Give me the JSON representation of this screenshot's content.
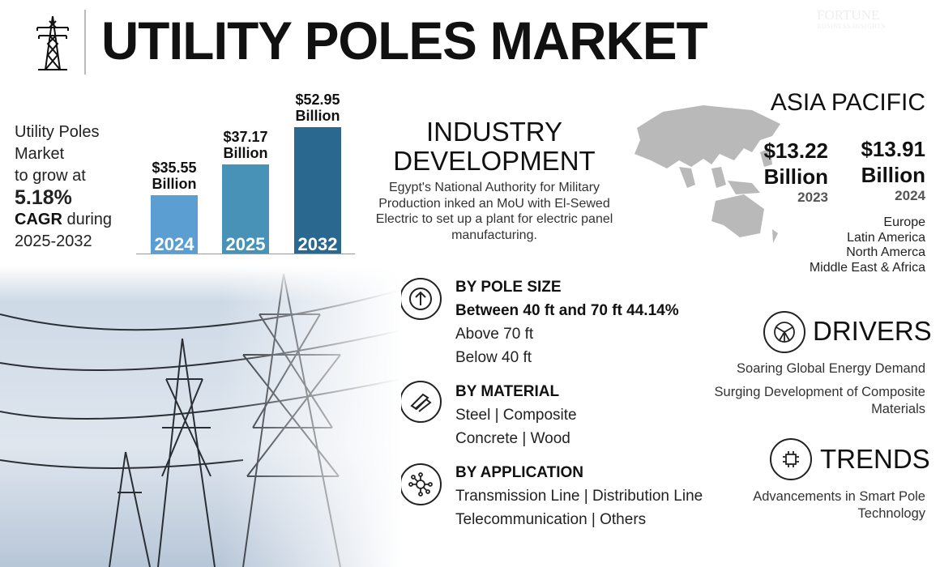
{
  "header": {
    "title": "UTILITY POLES MARKET",
    "watermark_top": "FORTUNE",
    "watermark_bottom": "BUSINESS INSIGHTS",
    "icon": "transmission-tower-icon"
  },
  "summary": {
    "line1": "Utility Poles",
    "line2": "Market",
    "line3": "to grow at",
    "cagr": "5.18%",
    "cagr_label": "CAGR",
    "during": " during",
    "period": "2025-2032"
  },
  "chart_data": {
    "type": "bar",
    "categories": [
      "2024",
      "2025",
      "2032"
    ],
    "values": [
      35.55,
      37.17,
      52.95
    ],
    "unit": "USD Billion",
    "labels": [
      "$35.55",
      "$37.17",
      "$52.95"
    ],
    "label_unit": "Billion",
    "colors": [
      "#5b9fd2",
      "#4792b6",
      "#2b6890"
    ]
  },
  "industry": {
    "title_line1": "INDUSTRY",
    "title_line2": "DEVELOPMENT",
    "text": "Egypt's National Authority for Military Production inked an MoU with El-Sewed Electric to set up a plant for electric panel manufacturing."
  },
  "region": {
    "title": "ASIA PACIFIC",
    "values": [
      {
        "amount": "$13.22",
        "unit": "Billion",
        "year": "2023"
      },
      {
        "amount": "$13.91",
        "unit": "Billion",
        "year": "2024"
      }
    ],
    "others": [
      "Europe",
      "Latin America",
      "North Amerca",
      "Middle East & Africa"
    ]
  },
  "segments": [
    {
      "title": "BY POLE SIZE",
      "icon": "arrow-up-circle-icon",
      "highlight": "Between 40 ft and 70 ft 44.14%",
      "items": [
        "Above 70 ft",
        "Below 40 ft"
      ]
    },
    {
      "title": "BY MATERIAL",
      "icon": "steel-beams-icon",
      "items": [
        "Steel  |  Composite",
        "Concrete |  Wood"
      ]
    },
    {
      "title": "BY APPLICATION",
      "icon": "network-hub-icon",
      "items": [
        "Transmission Line  |  Distribution Line",
        "Telecommunication  |  Others"
      ]
    }
  ],
  "drivers": {
    "title": "DRIVERS",
    "icon": "globe-network-icon",
    "items": [
      "Soaring Global Energy Demand",
      "Surging Development of Composite Materials"
    ]
  },
  "trends": {
    "title": "TRENDS",
    "icon": "smart-chip-icon",
    "items": [
      "Advancements in Smart Pole Technology"
    ]
  }
}
